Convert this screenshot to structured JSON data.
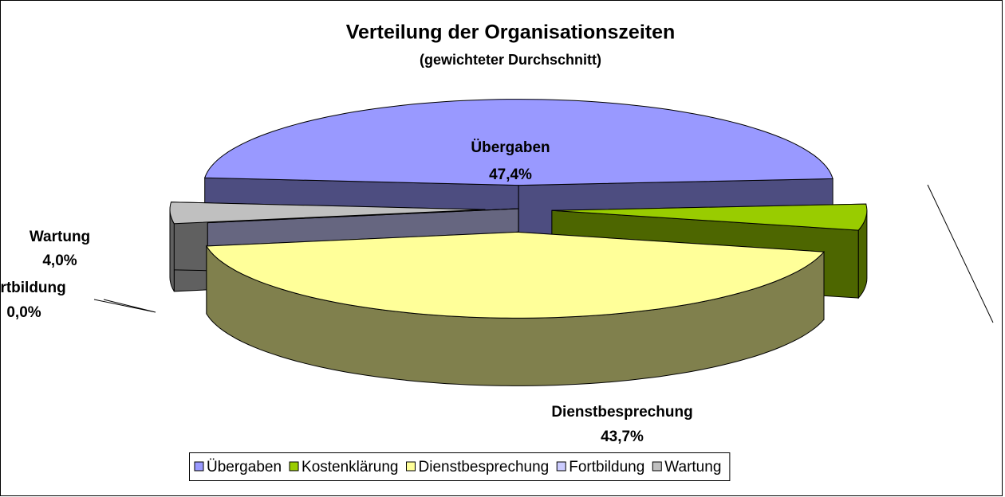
{
  "chart_data": {
    "type": "pie3d",
    "title": "Verteilung der Organisationszeiten",
    "subtitle": "(gewichteter Durchschnitt)",
    "categories": [
      "Übergaben",
      "Kostenklärung",
      "Dienstbesprechung",
      "Fortbildung",
      "Wartung"
    ],
    "values": [
      47.4,
      4.9,
      43.7,
      0.0,
      4.0
    ],
    "value_labels": [
      "47,4%",
      null,
      "43,7%",
      "0,0%",
      "4,0%"
    ],
    "colors": [
      "#9999ff",
      "#99cc00",
      "#ffff99",
      "#ccccff",
      "#c0c0c0"
    ],
    "legend": "bottom"
  }
}
